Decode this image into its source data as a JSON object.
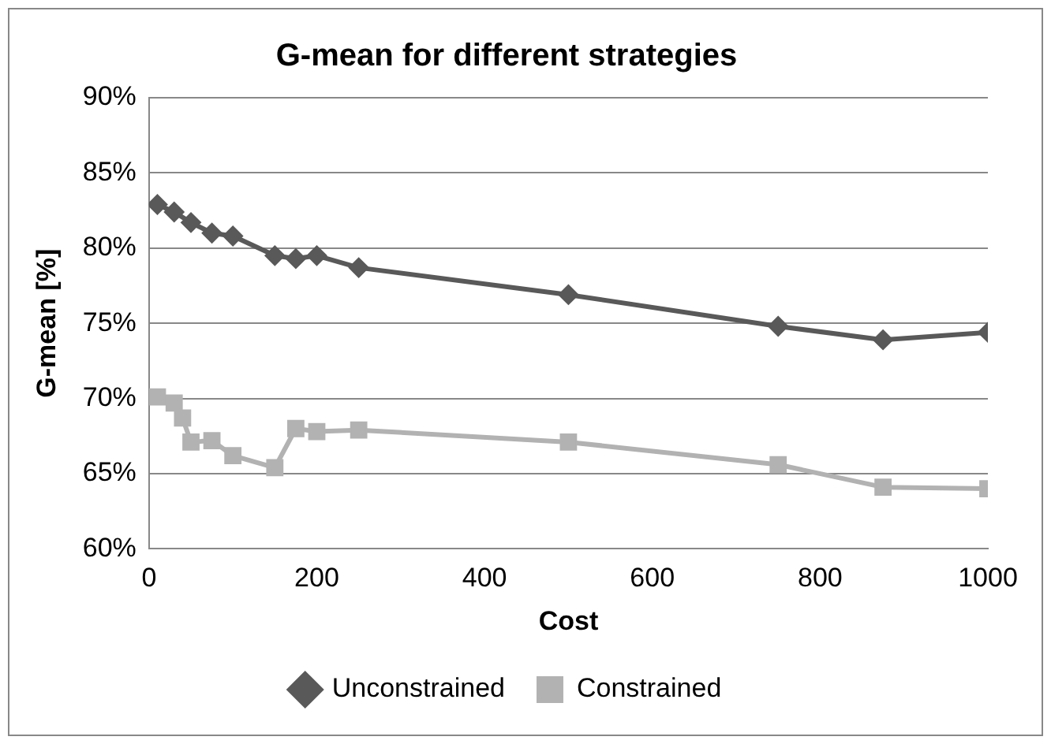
{
  "chart_data": {
    "type": "line",
    "title": "G-mean for different strategies",
    "xlabel": "Cost",
    "ylabel": "G-mean [%]",
    "xlim": [
      0,
      1000
    ],
    "xticks": [
      0,
      200,
      400,
      600,
      800,
      1000
    ],
    "ylim": [
      60,
      90
    ],
    "yticks": [
      {
        "value": 60,
        "label": "60%"
      },
      {
        "value": 65,
        "label": "65%"
      },
      {
        "value": 70,
        "label": "70%"
      },
      {
        "value": 75,
        "label": "75%"
      },
      {
        "value": 80,
        "label": "80%"
      },
      {
        "value": 85,
        "label": "85%"
      },
      {
        "value": 90,
        "label": "90%"
      }
    ],
    "grid": "y",
    "legend": "bottom",
    "line_style": "solid",
    "series": [
      {
        "name": "Unconstrained",
        "color": "#595959",
        "marker": "diamond",
        "x": [
          10,
          30,
          50,
          75,
          100,
          150,
          175,
          200,
          250,
          500,
          750,
          875,
          1000
        ],
        "values": [
          82.9,
          82.4,
          81.7,
          81.0,
          80.8,
          79.5,
          79.3,
          79.5,
          78.7,
          76.9,
          74.8,
          73.9,
          74.4
        ]
      },
      {
        "name": "Constrained",
        "color": "#b2b2b2",
        "marker": "square",
        "x": [
          10,
          30,
          40,
          50,
          75,
          100,
          150,
          175,
          200,
          250,
          500,
          750,
          875,
          1000
        ],
        "values": [
          70.1,
          69.7,
          68.7,
          67.1,
          67.2,
          66.2,
          65.4,
          68.0,
          67.8,
          67.9,
          67.1,
          65.6,
          64.1,
          64.0
        ]
      }
    ]
  }
}
